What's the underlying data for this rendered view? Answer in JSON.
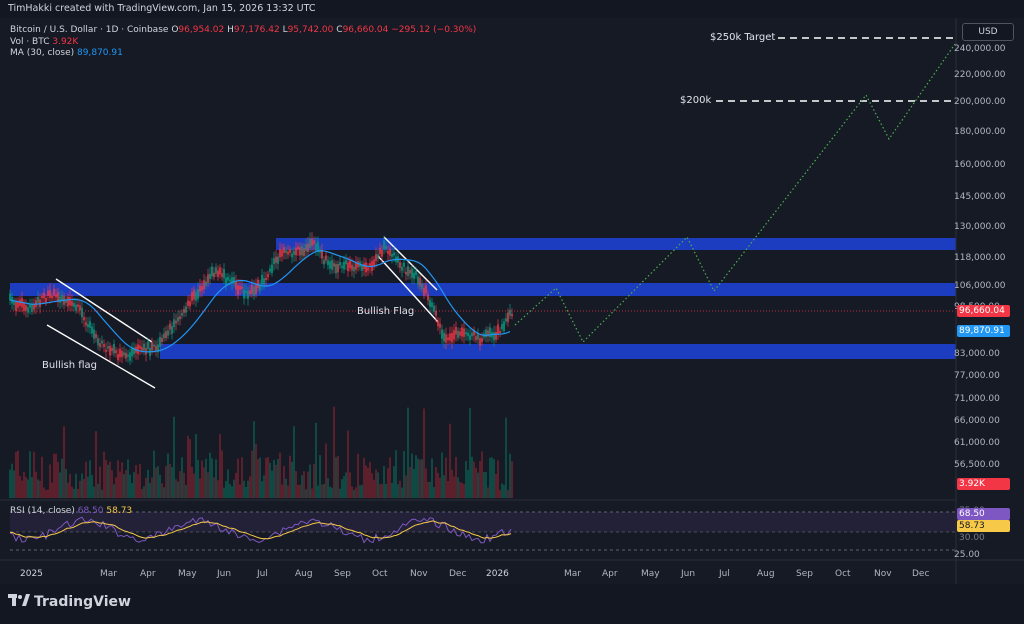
{
  "topline": "TimHakki created with TradingView.com, Jan 15, 2026 13:32 UTC",
  "legend": {
    "symbol": "Bitcoin / U.S. Dollar · 1D · Coinbase",
    "o_label": "O",
    "o": "96,954.02",
    "h_label": "H",
    "h": "97,176.42",
    "l_label": "L",
    "l": "95,742.00",
    "c_label": "C",
    "c": "96,660.04",
    "change": "−295.12 (−0.30%)",
    "vol_label": "Vol · BTC",
    "vol": "3.92K",
    "ma_label": "MA (30, close)",
    "ma": "89,870.91",
    "rsi_label": "RSI (14, close)",
    "rsi": "68.50",
    "rsi_ma": "58.73"
  },
  "currency": "USD",
  "price_axis": [
    "240,000.00",
    "220,000.00",
    "200,000.00",
    "180,000.00",
    "160,000.00",
    "145,000.00",
    "130,000.00",
    "118,000.00",
    "106,000.00",
    "98,500.00",
    "83,000.00",
    "77,000.00",
    "71,000.00",
    "66,000.00",
    "61,000.00",
    "56,500.00",
    "25.00"
  ],
  "tags": {
    "price": "96,660.04",
    "ma": "89,870.91",
    "vol": "3.92K",
    "rsi_upper": "75.00",
    "rsi": "68.50",
    "rsi_ma": "58.73",
    "rsi_lower": "30.00"
  },
  "time_axis": [
    "2025",
    "Mar",
    "Apr",
    "May",
    "Jun",
    "Jul",
    "Aug",
    "Sep",
    "Oct",
    "Nov",
    "Dec",
    "2026",
    "Mar",
    "Apr",
    "May",
    "Jun",
    "Jul",
    "Aug",
    "Sep",
    "Oct",
    "Nov",
    "Dec"
  ],
  "annotations": {
    "target_250": "$250k Target",
    "target_200": "$200k",
    "flag_left": "Bullish flag",
    "flag_right": "Bullish Flag"
  },
  "footer": "TradingView",
  "colors": {
    "zone": "#1e3fc9",
    "up": "#089981",
    "down": "#f23645",
    "ma": "#2196f3",
    "rsi": "#7e57c2",
    "rsi_ma": "#f7c948",
    "projection": "#4caf50"
  }
}
